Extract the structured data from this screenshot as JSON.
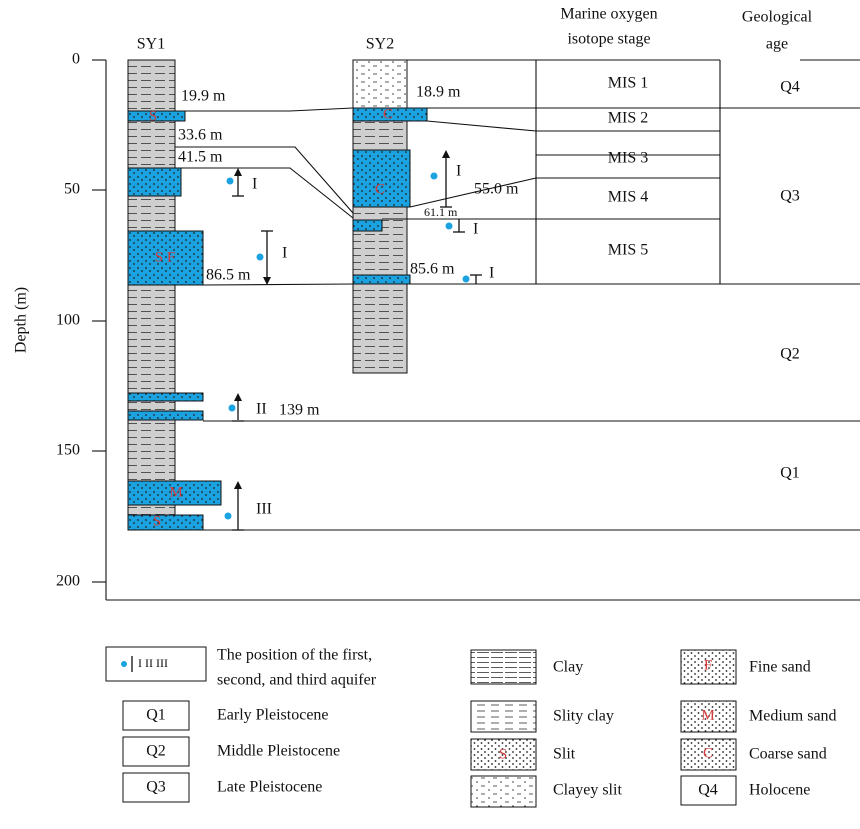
{
  "columns": {
    "sy1": "SY1",
    "sy2": "SY2",
    "mis": [
      "Marine oxygen",
      "isotope stage"
    ],
    "age": [
      "Geological",
      "age"
    ]
  },
  "axis": {
    "label": "Depth (m)",
    "ticks": [
      "0",
      "50",
      "100",
      "150",
      "200"
    ]
  },
  "depths": {
    "sy1": [
      "19.9 m",
      "33.6 m",
      "41.5 m",
      "86.5 m",
      "139 m"
    ],
    "sy2": [
      "18.9 m",
      "55.0 m",
      "61.1 m",
      "85.6 m"
    ]
  },
  "aquifers": {
    "sy1": [
      "I",
      "I",
      "II",
      "III"
    ],
    "sy2": [
      "I",
      "I",
      "I"
    ]
  },
  "mis": [
    "MIS 1",
    "MIS 2",
    "MIS 3",
    "MIS 4",
    "MIS 5"
  ],
  "ages": [
    "Q4",
    "Q3",
    "Q2",
    "Q1"
  ],
  "block_letters": [
    "S",
    "S F",
    "M",
    "S",
    "C",
    "C"
  ],
  "legend": {
    "aquifer": {
      "symbol": "I II III",
      "lines": [
        "The position of the first,",
        "second, and third aquifer"
      ]
    },
    "ages": [
      {
        "code": "Q1",
        "label": "Early Pleistocene"
      },
      {
        "code": "Q2",
        "label": "Middle Pleistocene"
      },
      {
        "code": "Q3",
        "label": "Late Pleistocene"
      }
    ],
    "lithology": [
      {
        "name": "Clay"
      },
      {
        "name": "Slity clay"
      },
      {
        "name": "Slit",
        "letter": "S"
      },
      {
        "name": "Clayey slit"
      },
      {
        "name": "Fine sand",
        "letter": "F"
      },
      {
        "name": "Medium sand",
        "letter": "M"
      },
      {
        "name": "Coarse sand",
        "letter": "C"
      }
    ],
    "holocene": {
      "code": "Q4",
      "label": "Holocene"
    }
  }
}
